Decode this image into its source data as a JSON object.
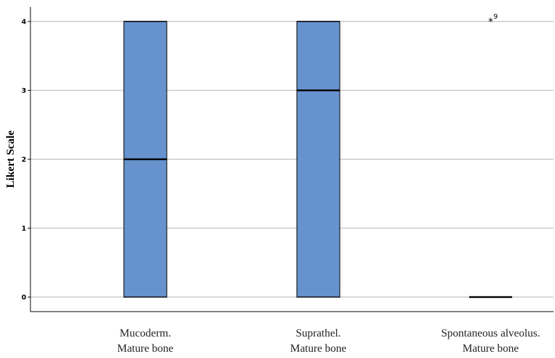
{
  "chart_data": {
    "type": "boxplot",
    "ylabel": "Likert Scale",
    "ylim": [
      0,
      4
    ],
    "yticks": [
      "0",
      "1",
      "2",
      "3",
      "4"
    ],
    "grid": "horizontal",
    "box_color": "#6692CE",
    "categories": [
      [
        "Mucoderm.",
        "Mature bone"
      ],
      [
        "Suprathel.",
        "Mature bone"
      ],
      [
        "Spontaneous alveolus.",
        "Mature bone"
      ]
    ],
    "boxes": [
      {
        "q1": 0,
        "median": 2,
        "q3": 4,
        "min": 0,
        "max": 4
      },
      {
        "q1": 0,
        "median": 3,
        "q3": 4,
        "min": 0,
        "max": 4
      },
      {
        "q1": 0,
        "median": 0,
        "q3": 0,
        "min": 0,
        "max": 0
      }
    ],
    "outliers": [
      {
        "category_index": 2,
        "value": 4,
        "label": "9",
        "marker": "*"
      }
    ]
  }
}
